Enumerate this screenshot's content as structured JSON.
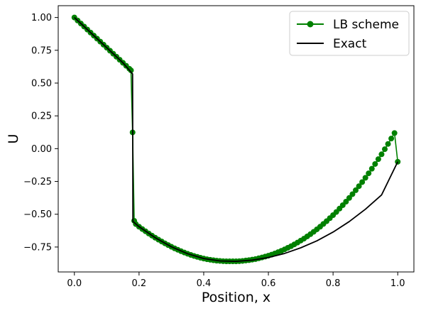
{
  "chart_data": {
    "type": "line",
    "xlabel": "Position, x",
    "ylabel": "U",
    "xlim": [
      -0.05,
      1.05
    ],
    "ylim": [
      -0.94,
      1.09
    ],
    "xticks": [
      0.0,
      0.2,
      0.4,
      0.6,
      0.8,
      1.0
    ],
    "xtick_labels": [
      "0.0",
      "0.2",
      "0.4",
      "0.6",
      "0.8",
      "1.0"
    ],
    "yticks": [
      1.0,
      0.75,
      0.5,
      0.25,
      0.0,
      -0.25,
      -0.5,
      -0.75
    ],
    "ytick_labels": [
      "1.00",
      "0.75",
      "0.50",
      "0.25",
      "0.00",
      "−0.25",
      "−0.50",
      "−0.75"
    ],
    "legend_position": "top-right",
    "grid": false,
    "series": [
      {
        "name": "LB scheme",
        "color": "#008000",
        "marker": "circle",
        "x": [
          0.0,
          0.01,
          0.02,
          0.03,
          0.04,
          0.05,
          0.06,
          0.07,
          0.08,
          0.09,
          0.1,
          0.11,
          0.12,
          0.13,
          0.14,
          0.15,
          0.16,
          0.17,
          0.175,
          0.18,
          0.185,
          0.19,
          0.2,
          0.21,
          0.22,
          0.23,
          0.24,
          0.25,
          0.26,
          0.27,
          0.28,
          0.29,
          0.3,
          0.31,
          0.32,
          0.33,
          0.34,
          0.35,
          0.36,
          0.37,
          0.38,
          0.39,
          0.4,
          0.41,
          0.42,
          0.43,
          0.44,
          0.45,
          0.46,
          0.47,
          0.48,
          0.49,
          0.5,
          0.51,
          0.52,
          0.53,
          0.54,
          0.55,
          0.56,
          0.57,
          0.58,
          0.59,
          0.6,
          0.61,
          0.62,
          0.63,
          0.64,
          0.65,
          0.66,
          0.67,
          0.68,
          0.69,
          0.7,
          0.71,
          0.72,
          0.73,
          0.74,
          0.75,
          0.76,
          0.77,
          0.78,
          0.79,
          0.8,
          0.81,
          0.82,
          0.83,
          0.84,
          0.85,
          0.86,
          0.87,
          0.88,
          0.89,
          0.9,
          0.91,
          0.92,
          0.93,
          0.94,
          0.95,
          0.96,
          0.97,
          0.98,
          0.99,
          1.0
        ],
        "y": [
          1.0,
          0.977,
          0.954,
          0.931,
          0.908,
          0.885,
          0.862,
          0.839,
          0.816,
          0.793,
          0.77,
          0.747,
          0.724,
          0.701,
          0.678,
          0.655,
          0.632,
          0.609,
          0.597,
          0.124,
          -0.55,
          -0.575,
          -0.595,
          -0.613,
          -0.63,
          -0.647,
          -0.663,
          -0.679,
          -0.694,
          -0.708,
          -0.722,
          -0.735,
          -0.748,
          -0.76,
          -0.771,
          -0.782,
          -0.792,
          -0.801,
          -0.81,
          -0.818,
          -0.825,
          -0.832,
          -0.838,
          -0.843,
          -0.847,
          -0.851,
          -0.854,
          -0.856,
          -0.858,
          -0.859,
          -0.859,
          -0.859,
          -0.859,
          -0.858,
          -0.856,
          -0.853,
          -0.85,
          -0.846,
          -0.842,
          -0.836,
          -0.83,
          -0.823,
          -0.816,
          -0.808,
          -0.799,
          -0.789,
          -0.779,
          -0.768,
          -0.756,
          -0.744,
          -0.73,
          -0.716,
          -0.701,
          -0.686,
          -0.669,
          -0.652,
          -0.634,
          -0.615,
          -0.595,
          -0.574,
          -0.553,
          -0.53,
          -0.507,
          -0.483,
          -0.457,
          -0.431,
          -0.404,
          -0.376,
          -0.347,
          -0.317,
          -0.286,
          -0.255,
          -0.222,
          -0.188,
          -0.153,
          -0.117,
          -0.08,
          -0.043,
          -0.004,
          0.036,
          0.077,
          0.119,
          -0.1
        ]
      },
      {
        "name": "Exact",
        "color": "#000000",
        "marker": "none",
        "x": [
          0.0,
          0.05,
          0.1,
          0.15,
          0.18,
          0.181,
          0.2,
          0.25,
          0.3,
          0.35,
          0.4,
          0.45,
          0.5,
          0.55,
          0.6,
          0.65,
          0.7,
          0.75,
          0.8,
          0.85,
          0.9,
          0.95,
          1.0
        ],
        "y": [
          1.0,
          0.885,
          0.77,
          0.655,
          0.57,
          -0.555,
          -0.595,
          -0.679,
          -0.748,
          -0.801,
          -0.838,
          -0.856,
          -0.859,
          -0.85,
          -0.83,
          -0.799,
          -0.756,
          -0.703,
          -0.636,
          -0.556,
          -0.462,
          -0.353,
          -0.1
        ]
      }
    ]
  }
}
